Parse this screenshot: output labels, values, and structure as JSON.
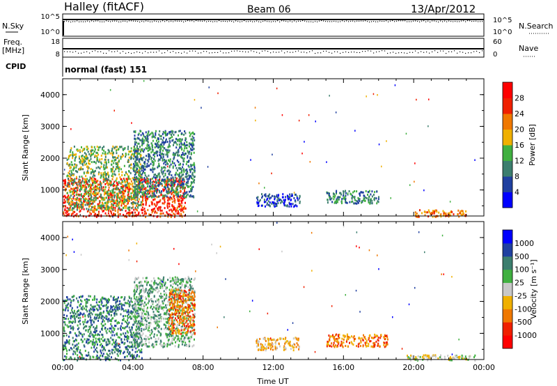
{
  "header": {
    "station": "Halley (fitACF)",
    "beam": "Beam 06",
    "date": "13/Apr/2012"
  },
  "top_panels": {
    "nsky_label": "N.Sky",
    "nsearch_label": "N.Search",
    "freq_label_1": "Freq.",
    "freq_label_2": "[MHz]",
    "nave_label": "Nave",
    "cpid_label": "CPID",
    "cpid_value": "normal (fast) 151",
    "noise_left_ticks": [
      "10^5",
      "10^0"
    ],
    "noise_right_ticks": [
      "10^5",
      "10^0"
    ],
    "freq_left_ticks": [
      "18",
      "8"
    ],
    "freq_right_ticks": [
      "60",
      "0"
    ]
  },
  "colors": {
    "power_scale": [
      "#0000ff",
      "#2040a0",
      "#3c7e6e",
      "#40b040",
      "#f0b000",
      "#f07800",
      "#f02000",
      "#ff0000"
    ],
    "velocity_scale": [
      "#ff0000",
      "#f02000",
      "#f07800",
      "#f0b000",
      "#c8c8c8",
      "#40b040",
      "#3c7e6e",
      "#2040a0",
      "#0000ff"
    ]
  },
  "chart_data": [
    {
      "type": "heatmap",
      "name": "power",
      "ylabel": "Slant Range [km]",
      "xlabel": "",
      "yticks": [
        "1000",
        "2000",
        "3000",
        "4000"
      ],
      "colorbar_label": "Power [dB]",
      "colorbar_ticks": [
        "4",
        "8",
        "12",
        "16",
        "20",
        "24",
        "28"
      ],
      "ylim": [
        180,
        4500
      ],
      "xlim": [
        0,
        24
      ],
      "regions": [
        {
          "t0": 0.0,
          "t1": 7.0,
          "r0": 180,
          "r1": 1400,
          "level": 6
        },
        {
          "t0": 0.2,
          "t1": 4.5,
          "r0": 400,
          "r1": 2400,
          "level": 3
        },
        {
          "t0": 4.0,
          "t1": 7.5,
          "r0": 800,
          "r1": 2900,
          "level": 2
        },
        {
          "t0": 11.0,
          "t1": 13.5,
          "r0": 500,
          "r1": 900,
          "level": 1
        },
        {
          "t0": 15.0,
          "t1": 18.0,
          "r0": 600,
          "r1": 1000,
          "level": 2
        },
        {
          "t0": 20.0,
          "t1": 23.0,
          "r0": 180,
          "r1": 400,
          "level": 5
        }
      ]
    },
    {
      "type": "heatmap",
      "name": "velocity",
      "ylabel": "Slant Range [km]",
      "xlabel": "Time UT",
      "xticks": [
        "00:00",
        "04:00",
        "08:00",
        "12:00",
        "16:00",
        "20:00",
        "00:00"
      ],
      "yticks": [
        "1000",
        "2000",
        "3000",
        "4000"
      ],
      "colorbar_label": "Velocity [m s⁻¹]",
      "colorbar_ticks": [
        "1000",
        "500",
        "100",
        "25",
        "-25",
        "-100",
        "-500",
        "-1000"
      ],
      "ylim": [
        180,
        4500
      ],
      "xlim": [
        0,
        24
      ],
      "regions": [
        {
          "t0": 0.0,
          "t1": 4.5,
          "r0": 180,
          "r1": 2200,
          "level": 6
        },
        {
          "t0": 4.0,
          "t1": 7.5,
          "r0": 600,
          "r1": 2800,
          "level": 5
        },
        {
          "t0": 6.0,
          "t1": 7.5,
          "r0": 1000,
          "r1": 2400,
          "level": 2
        },
        {
          "t0": 11.0,
          "t1": 13.5,
          "r0": 500,
          "r1": 900,
          "level": 3
        },
        {
          "t0": 15.0,
          "t1": 18.5,
          "r0": 600,
          "r1": 1000,
          "level": 2
        },
        {
          "t0": 19.5,
          "t1": 23.5,
          "r0": 180,
          "r1": 350,
          "level": 4
        }
      ]
    }
  ]
}
